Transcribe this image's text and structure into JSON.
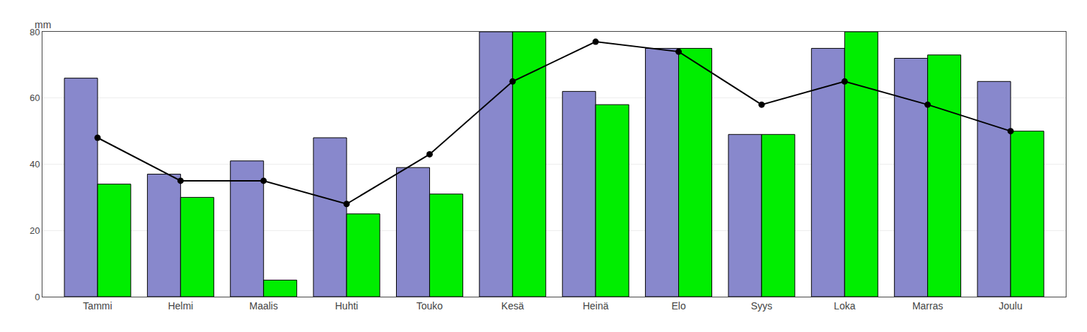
{
  "chart_data": {
    "type": "bar",
    "categories": [
      "Tammi",
      "Helmi",
      "Maalis",
      "Huhti",
      "Touko",
      "Kesä",
      "Heinä",
      "Elo",
      "Syys",
      "Loka",
      "Marras",
      "Joulu"
    ],
    "series": [
      {
        "type": "bar",
        "color": "#8888CC",
        "values": [
          66,
          37,
          41,
          48,
          39,
          80,
          62,
          75,
          49,
          75,
          72,
          65
        ]
      },
      {
        "type": "bar",
        "color": "#00EE00",
        "values": [
          34,
          30,
          5,
          25,
          31,
          80,
          58,
          75,
          49,
          80,
          73,
          50
        ]
      },
      {
        "type": "line",
        "color": "#000000",
        "marker": "circle",
        "values": [
          48,
          35,
          35,
          28,
          43,
          65,
          77,
          74,
          58,
          65,
          58,
          50
        ]
      }
    ],
    "ylabel": "mm",
    "ylim": [
      0,
      80
    ],
    "yticks": [
      0,
      20,
      40,
      60,
      80
    ],
    "grid": true
  }
}
